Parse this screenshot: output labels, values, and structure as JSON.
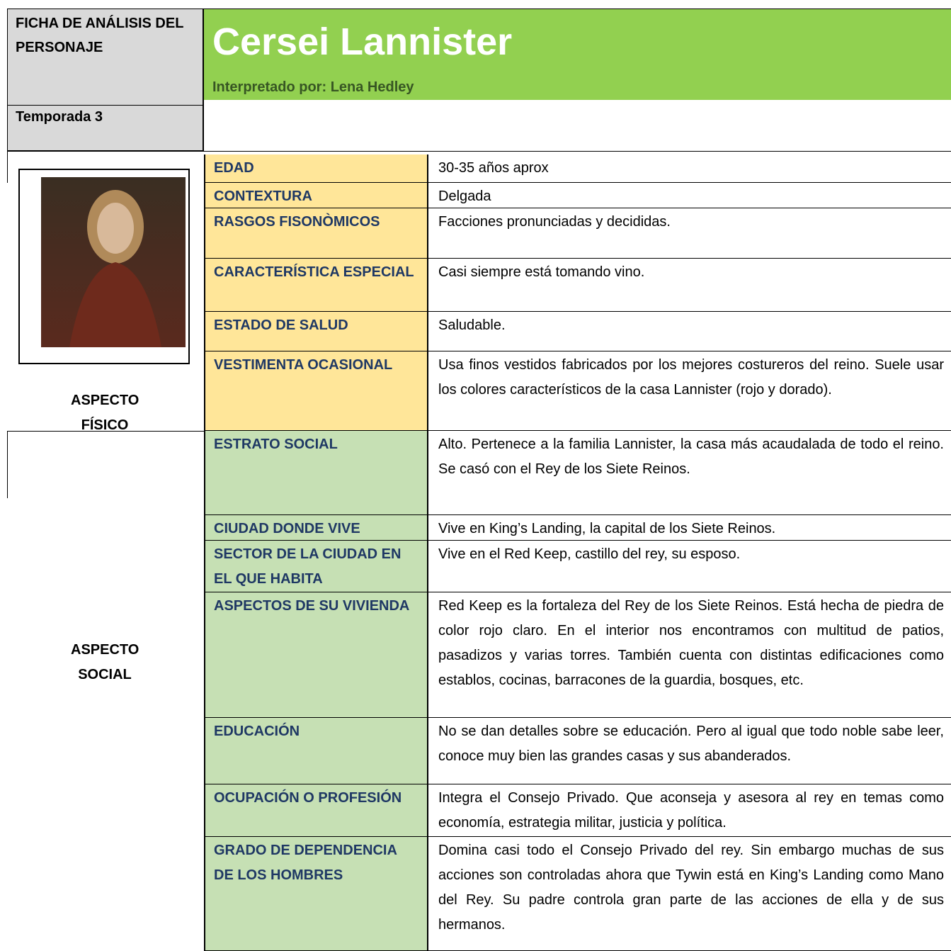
{
  "header": {
    "form_title": "FICHA DE ANÁLISIS DEL PERSONAJE",
    "name": "Cersei Lannister",
    "actor_label": "Interpretado por:",
    "actor": "Lena Hedley",
    "season": "Temporada 3"
  },
  "sections": [
    {
      "label": "ASPECTO FÍSICO",
      "rows": [
        {
          "field": "EDAD",
          "value": "30-35 años aprox"
        },
        {
          "field": "CONTEXTURA",
          "value": "Delgada"
        },
        {
          "field": "RASGOS FISONÒMICOS",
          "value": "Facciones pronunciadas y decididas."
        },
        {
          "field": "CARACTERÍSTICA ESPECIAL",
          "value": "Casi siempre está tomando vino."
        },
        {
          "field": "ESTADO DE SALUD",
          "value": "Saludable."
        },
        {
          "field": "VESTIMENTA OCASIONAL",
          "value": "Usa finos vestidos fabricados por los mejores costureros del reino. Suele usar los colores característicos de la casa Lannister (rojo y dorado)."
        }
      ]
    },
    {
      "label": "ASPECTO SOCIAL",
      "rows": [
        {
          "field": "ESTRATO SOCIAL",
          "value": "Alto. Pertenece a la familia Lannister, la casa más acaudalada de todo el reino. Se casó con el Rey de los Siete Reinos."
        },
        {
          "field": "CIUDAD DONDE VIVE",
          "value": "Vive en King’s Landing, la capital de los Siete Reinos."
        },
        {
          "field": "SECTOR DE LA CIUDAD EN EL QUE HABITA",
          "value": "Vive en el Red Keep, castillo del rey, su esposo."
        },
        {
          "field": "ASPECTOS DE SU VIVIENDA",
          "value": "Red Keep es la fortaleza del Rey de los Siete Reinos. Está hecha de piedra de color rojo claro. En el interior nos encontramos con multitud de patios, pasadizos y varias torres. También cuenta con distintas edificaciones como establos, cocinas, barracones de la guardia, bosques, etc."
        },
        {
          "field": "EDUCACIÓN",
          "value": "No se dan detalles sobre se educación. Pero al igual que todo noble sabe leer, conoce muy bien las grandes casas y sus abanderados."
        },
        {
          "field": "OCUPACIÓN O PROFESIÓN",
          "value": "Integra el Consejo Privado. Que aconseja y asesora al rey en temas como economía, estrategia militar, justicia y política."
        },
        {
          "field": "GRADO DE DEPENDENCIA DE LOS HOMBRES",
          "value": "Domina casi todo el Consejo Privado del rey. Sin embargo muchas de sus acciones son controladas ahora que Tywin está en King’s Landing como Mano del Rey. Su padre controla gran parte de las acciones de ella y de sus hermanos."
        }
      ]
    }
  ]
}
